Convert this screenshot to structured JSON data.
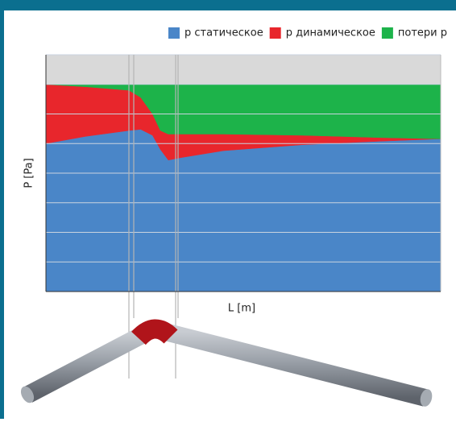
{
  "chart_data": {
    "type": "area",
    "stacked": true,
    "x": [
      0,
      10,
      21,
      24,
      27,
      29,
      31,
      34,
      45,
      65,
      85,
      100
    ],
    "series": [
      {
        "name": "p статическое",
        "color": "#4a86c8",
        "values": [
          62.5,
          65.5,
          68,
          68.5,
          66,
          60,
          55.5,
          56.5,
          59.5,
          62,
          63.5,
          64.5
        ]
      },
      {
        "name": "p динамическое",
        "color": "#e8262c",
        "values": [
          25,
          21,
          17,
          13.5,
          9,
          8,
          11,
          10,
          7,
          4,
          1.5,
          0
        ]
      },
      {
        "name": "потери p",
        "color": "#1db34a",
        "values": [
          0,
          1,
          2.5,
          5.5,
          12.5,
          19.5,
          21,
          21,
          21,
          21.5,
          22.5,
          23
        ]
      }
    ],
    "x_label": "L [m]",
    "y_label": "P [Pa]",
    "xlim": [
      0,
      100
    ],
    "ylim": [
      0,
      100
    ],
    "yticks": [
      0,
      12.5,
      25,
      37.5,
      50,
      62.5,
      75,
      87.5,
      100
    ],
    "grid": true,
    "legend": "top-right"
  }
}
